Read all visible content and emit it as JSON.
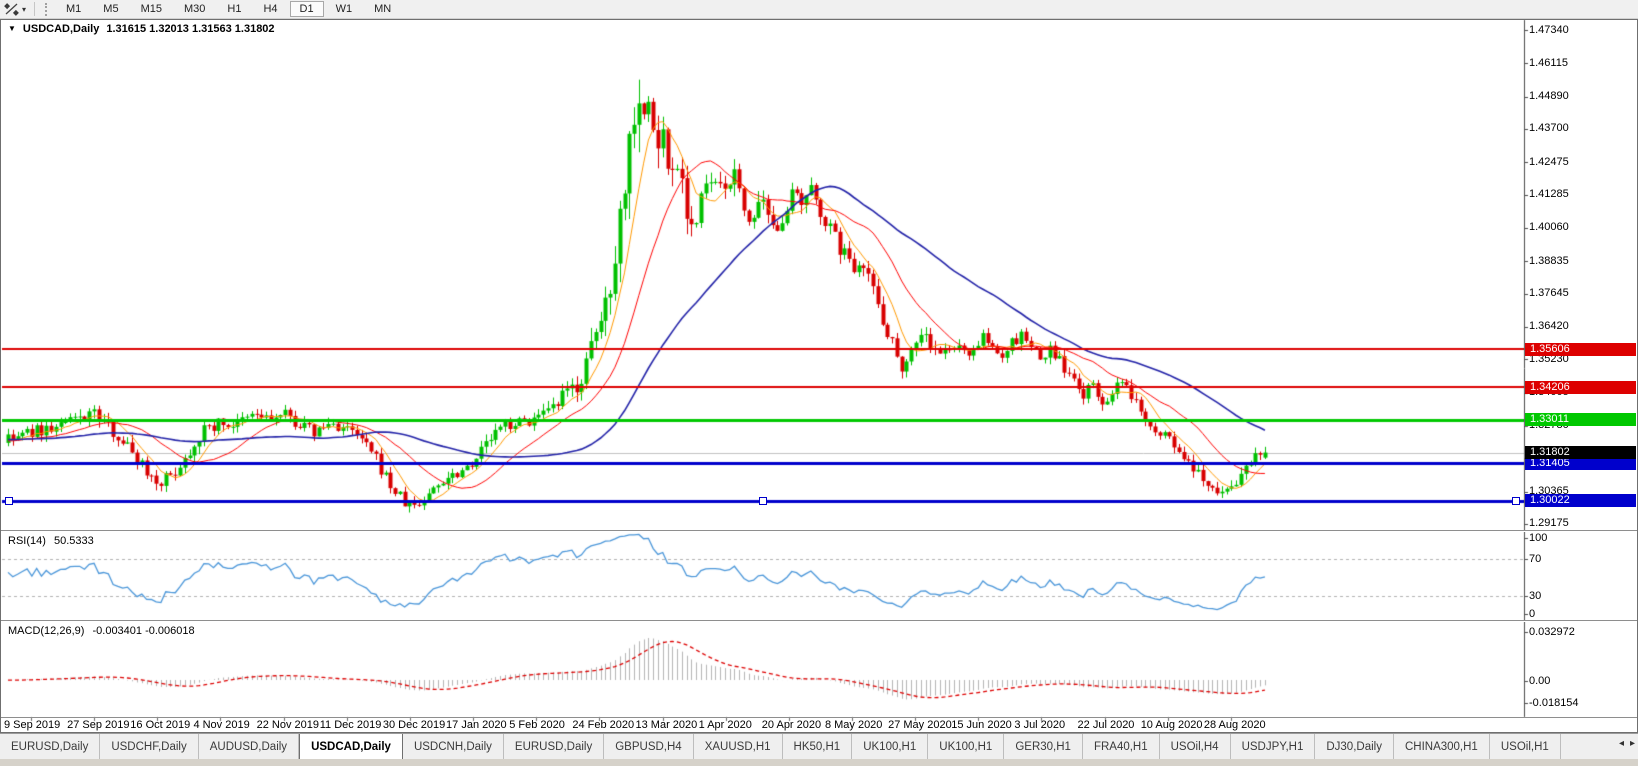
{
  "toolbar": {
    "line_studies_icon": "percent-diamonds",
    "caret_icon": "▾",
    "timeframes": [
      "M1",
      "M5",
      "M15",
      "M30",
      "H1",
      "H4",
      "D1",
      "W1",
      "MN"
    ],
    "selected_timeframe": "D1"
  },
  "chart_header": {
    "collapse_icon": "▼",
    "symbol": "USDCAD,Daily",
    "ohlc": "1.31615 1.32013 1.31563 1.31802"
  },
  "colors": {
    "bull": "#00c000",
    "bear": "#d80000",
    "ma_fast": "#ff9900",
    "ma_mid": "#ff0000",
    "ma_slow": "#2323a8",
    "rsi_line": "#4a96d9",
    "rsi_level_dash": "#b0b0b0",
    "macd_histogram": "#b4b4b4",
    "macd_signal": "#dd0000",
    "current_price_line": "#c0c0c0",
    "hline_red": "#dd0000",
    "hline_green": "#00c800",
    "hline_blue": "#0000cc",
    "current_tag_bg": "#000000"
  },
  "price_axis": {
    "ticks": [
      "1.47340",
      "1.46115",
      "1.44890",
      "1.43700",
      "1.42475",
      "1.41285",
      "1.40060",
      "1.38835",
      "1.37645",
      "1.36420",
      "1.35230",
      "1.34005",
      "1.32780",
      "1.31590",
      "1.30365",
      "1.29175"
    ]
  },
  "time_axis": {
    "labels": [
      "9 Sep 2019",
      "27 Sep 2019",
      "16 Oct 2019",
      "4 Nov 2019",
      "22 Nov 2019",
      "11 Dec 2019",
      "30 Dec 2019",
      "17 Jan 2020",
      "5 Feb 2020",
      "24 Feb 2020",
      "13 Mar 2020",
      "1 Apr 2020",
      "20 Apr 2020",
      "8 May 2020",
      "27 May 2020",
      "15 Jun 2020",
      "3 Jul 2020",
      "22 Jul 2020",
      "10 Aug 2020",
      "28 Aug 2020"
    ]
  },
  "levels": {
    "hlines": [
      {
        "value": "1.35606",
        "price": 1.35606,
        "color": "#dd0000",
        "thickness": 2,
        "selected": false
      },
      {
        "value": "1.34206",
        "price": 1.34206,
        "color": "#dd0000",
        "thickness": 2,
        "selected": false
      },
      {
        "value": "1.33011",
        "price": 1.33011,
        "color": "#00c800",
        "thickness": 3,
        "selected": false
      },
      {
        "value": "1.31405",
        "price": 1.31405,
        "color": "#0000cc",
        "thickness": 3,
        "selected": false
      },
      {
        "value": "1.30022",
        "price": 1.30022,
        "color": "#0000cc",
        "thickness": 3,
        "selected": true
      }
    ],
    "current_price": {
      "value": "1.31802",
      "price": 1.31802
    }
  },
  "rsi_panel": {
    "label": "RSI(14)",
    "value": "50.5333",
    "levels": [
      "100",
      "70",
      "30",
      "0"
    ],
    "level_values": [
      100,
      70,
      30,
      0
    ]
  },
  "macd_panel": {
    "label": "MACD(12,26,9)",
    "values": "-0.003401 -0.006018",
    "axis": [
      "0.032972",
      "0.00",
      "-0.018154"
    ],
    "axis_values": [
      0.032972,
      0.0,
      -0.018154
    ]
  },
  "tabs": {
    "items": [
      "EURUSD,Daily",
      "USDCHF,Daily",
      "AUDUSD,Daily",
      "USDCAD,Daily",
      "USDCNH,Daily",
      "EURUSD,Daily",
      "GBPUSD,H4",
      "XAUUSD,H1",
      "HK50,H1",
      "UK100,H1",
      "UK100,H1",
      "GER30,H1",
      "FRA40,H1",
      "USOil,H4",
      "USDJPY,H1",
      "DJ30,Daily",
      "CHINA300,H1",
      "USOil,H1"
    ],
    "active_index": 3,
    "scroll_left_icon": "◂",
    "scroll_right_icon": "▸"
  },
  "chart_data": {
    "type": "candlestick",
    "symbol": "USDCAD",
    "timeframe": "Daily",
    "title": "USDCAD,Daily",
    "ohlc_display": {
      "open": 1.31615,
      "high": 1.32013,
      "low": 1.31563,
      "close": 1.31802
    },
    "ylim": [
      1.289,
      1.4771
    ],
    "y_ticks": [
      1.4734,
      1.46115,
      1.4489,
      1.437,
      1.42475,
      1.41285,
      1.4006,
      1.38835,
      1.37645,
      1.3642,
      1.3523,
      1.34005,
      1.3278,
      1.3159,
      1.30365,
      1.29175
    ],
    "x_labels": [
      "9 Sep 2019",
      "27 Sep 2019",
      "16 Oct 2019",
      "4 Nov 2019",
      "22 Nov 2019",
      "11 Dec 2019",
      "30 Dec 2019",
      "17 Jan 2020",
      "5 Feb 2020",
      "24 Feb 2020",
      "13 Mar 2020",
      "1 Apr 2020",
      "20 Apr 2020",
      "8 May 2020",
      "27 May 2020",
      "15 Jun 2020",
      "3 Jul 2020",
      "22 Jul 2020",
      "10 Aug 2020",
      "28 Aug 2020"
    ],
    "bars_visible": 264,
    "horizontal_lines": [
      1.35606,
      1.34206,
      1.33011,
      1.31405,
      1.30022
    ],
    "moving_averages": [
      {
        "name": "fast",
        "period": 7,
        "color": "#ff9900"
      },
      {
        "name": "mid",
        "period": 18,
        "color": "#ff0000"
      },
      {
        "name": "slow",
        "period": 45,
        "color": "#2323a8"
      }
    ],
    "indicators": [
      {
        "name": "RSI",
        "period": 14,
        "current": 50.5333,
        "levels": [
          70,
          30
        ]
      },
      {
        "name": "MACD",
        "params": [
          12,
          26,
          9
        ],
        "current": [
          -0.003401,
          -0.006018
        ]
      }
    ],
    "price_path_anchors": [
      [
        8,
        1.3225,
        0.005
      ],
      [
        30,
        1.3255,
        0.005
      ],
      [
        55,
        1.3272,
        0.005
      ],
      [
        75,
        1.33,
        0.006
      ],
      [
        90,
        1.3332,
        0.006
      ],
      [
        105,
        1.329,
        0.005
      ],
      [
        120,
        1.3235,
        0.005
      ],
      [
        140,
        1.315,
        0.006
      ],
      [
        155,
        1.3075,
        0.006
      ],
      [
        170,
        1.309,
        0.005
      ],
      [
        185,
        1.316,
        0.006
      ],
      [
        200,
        1.325,
        0.006
      ],
      [
        218,
        1.329,
        0.005
      ],
      [
        238,
        1.328,
        0.006
      ],
      [
        255,
        1.3322,
        0.006
      ],
      [
        270,
        1.33,
        0.005
      ],
      [
        285,
        1.3318,
        0.005
      ],
      [
        300,
        1.3282,
        0.005
      ],
      [
        315,
        1.3252,
        0.005
      ],
      [
        330,
        1.3288,
        0.005
      ],
      [
        345,
        1.3268,
        0.005
      ],
      [
        360,
        1.3232,
        0.005
      ],
      [
        375,
        1.316,
        0.005
      ],
      [
        390,
        1.306,
        0.006
      ],
      [
        405,
        1.2992,
        0.005
      ],
      [
        418,
        1.2986,
        0.004
      ],
      [
        432,
        1.3042,
        0.005
      ],
      [
        446,
        1.3092,
        0.005
      ],
      [
        460,
        1.3112,
        0.004
      ],
      [
        475,
        1.316,
        0.005
      ],
      [
        490,
        1.3232,
        0.005
      ],
      [
        505,
        1.3282,
        0.005
      ],
      [
        520,
        1.3292,
        0.004
      ],
      [
        535,
        1.3302,
        0.005
      ],
      [
        550,
        1.3322,
        0.006
      ],
      [
        565,
        1.3392,
        0.007
      ],
      [
        580,
        1.3442,
        0.008
      ],
      [
        592,
        1.356,
        0.01
      ],
      [
        600,
        1.366,
        0.012
      ],
      [
        608,
        1.3762,
        0.014
      ],
      [
        616,
        1.3962,
        0.016
      ],
      [
        624,
        1.4162,
        0.018
      ],
      [
        632,
        1.4422,
        0.02
      ],
      [
        638,
        1.4552,
        0.022
      ],
      [
        644,
        1.4382,
        0.02
      ],
      [
        650,
        1.4482,
        0.018
      ],
      [
        656,
        1.4282,
        0.016
      ],
      [
        663,
        1.4352,
        0.014
      ],
      [
        670,
        1.4182,
        0.014
      ],
      [
        678,
        1.4282,
        0.012
      ],
      [
        686,
        1.4092,
        0.012
      ],
      [
        694,
        1.3992,
        0.01
      ],
      [
        702,
        1.4122,
        0.01
      ],
      [
        712,
        1.4182,
        0.009
      ],
      [
        722,
        1.4122,
        0.009
      ],
      [
        732,
        1.4222,
        0.009
      ],
      [
        742,
        1.4092,
        0.009
      ],
      [
        752,
        1.4032,
        0.008
      ],
      [
        762,
        1.4092,
        0.008
      ],
      [
        772,
        1.3982,
        0.008
      ],
      [
        782,
        1.4052,
        0.007
      ],
      [
        792,
        1.4122,
        0.007
      ],
      [
        802,
        1.4082,
        0.007
      ],
      [
        812,
        1.4142,
        0.007
      ],
      [
        822,
        1.4062,
        0.007
      ],
      [
        832,
        1.3982,
        0.007
      ],
      [
        842,
        1.3922,
        0.007
      ],
      [
        852,
        1.3862,
        0.007
      ],
      [
        862,
        1.3902,
        0.006
      ],
      [
        872,
        1.3792,
        0.007
      ],
      [
        882,
        1.3682,
        0.007
      ],
      [
        892,
        1.3582,
        0.007
      ],
      [
        902,
        1.3502,
        0.007
      ],
      [
        912,
        1.3562,
        0.006
      ],
      [
        922,
        1.3632,
        0.006
      ],
      [
        932,
        1.3562,
        0.006
      ],
      [
        942,
        1.3532,
        0.005
      ],
      [
        952,
        1.3582,
        0.005
      ],
      [
        962,
        1.3542,
        0.005
      ],
      [
        972,
        1.3562,
        0.005
      ],
      [
        982,
        1.3602,
        0.005
      ],
      [
        992,
        1.3562,
        0.005
      ],
      [
        1002,
        1.3542,
        0.005
      ],
      [
        1012,
        1.3582,
        0.005
      ],
      [
        1022,
        1.3612,
        0.005
      ],
      [
        1032,
        1.3562,
        0.005
      ],
      [
        1042,
        1.3522,
        0.005
      ],
      [
        1052,
        1.3562,
        0.005
      ],
      [
        1062,
        1.3502,
        0.005
      ],
      [
        1072,
        1.3442,
        0.005
      ],
      [
        1082,
        1.3392,
        0.005
      ],
      [
        1092,
        1.3422,
        0.005
      ],
      [
        1102,
        1.3362,
        0.005
      ],
      [
        1112,
        1.3402,
        0.005
      ],
      [
        1122,
        1.3432,
        0.005
      ],
      [
        1132,
        1.3382,
        0.005
      ],
      [
        1142,
        1.3332,
        0.005
      ],
      [
        1152,
        1.3282,
        0.005
      ],
      [
        1162,
        1.3252,
        0.005
      ],
      [
        1172,
        1.3222,
        0.005
      ],
      [
        1182,
        1.3162,
        0.005
      ],
      [
        1192,
        1.3112,
        0.005
      ],
      [
        1202,
        1.3082,
        0.005
      ],
      [
        1212,
        1.3062,
        0.005
      ],
      [
        1222,
        1.3032,
        0.005
      ],
      [
        1232,
        1.3042,
        0.005
      ],
      [
        1240,
        1.3092,
        0.005
      ],
      [
        1248,
        1.3142,
        0.006
      ],
      [
        1256,
        1.3192,
        0.006
      ],
      [
        1262,
        1.3162,
        0.005
      ],
      [
        1268,
        1.318,
        0.004
      ]
    ]
  }
}
